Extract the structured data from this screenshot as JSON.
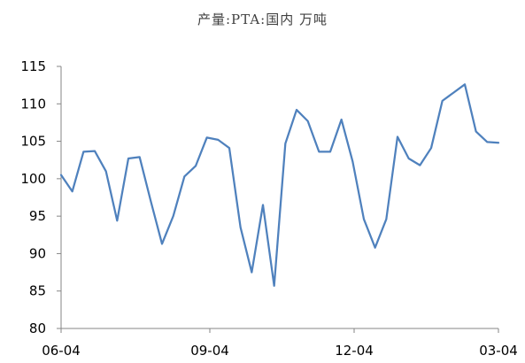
{
  "chart_data": {
    "type": "line",
    "title": "产量:PTA:国内 万吨",
    "xlabel": "",
    "ylabel": "",
    "ylim": [
      80,
      115
    ],
    "yticks": [
      80,
      85,
      90,
      95,
      100,
      105,
      110,
      115
    ],
    "xtick_labels": [
      "06-04",
      "09-04",
      "12-04",
      "03-04"
    ],
    "grid": false,
    "legend": "none",
    "line_color": "#4F81BD",
    "series": [
      {
        "values": [
          100.5,
          98.3,
          103.6,
          103.7,
          101.0,
          94.4,
          102.7,
          102.9,
          97.0,
          91.3,
          95.0,
          100.3,
          101.7,
          105.5,
          105.2,
          104.1,
          93.5,
          87.5,
          96.5,
          85.7,
          104.7,
          109.2,
          107.7,
          103.6,
          103.6,
          107.9,
          102.3,
          94.6,
          90.8,
          94.6,
          105.6,
          102.7,
          101.8,
          104.1,
          110.4,
          111.5,
          112.6,
          106.3,
          104.9,
          104.8
        ]
      }
    ]
  }
}
